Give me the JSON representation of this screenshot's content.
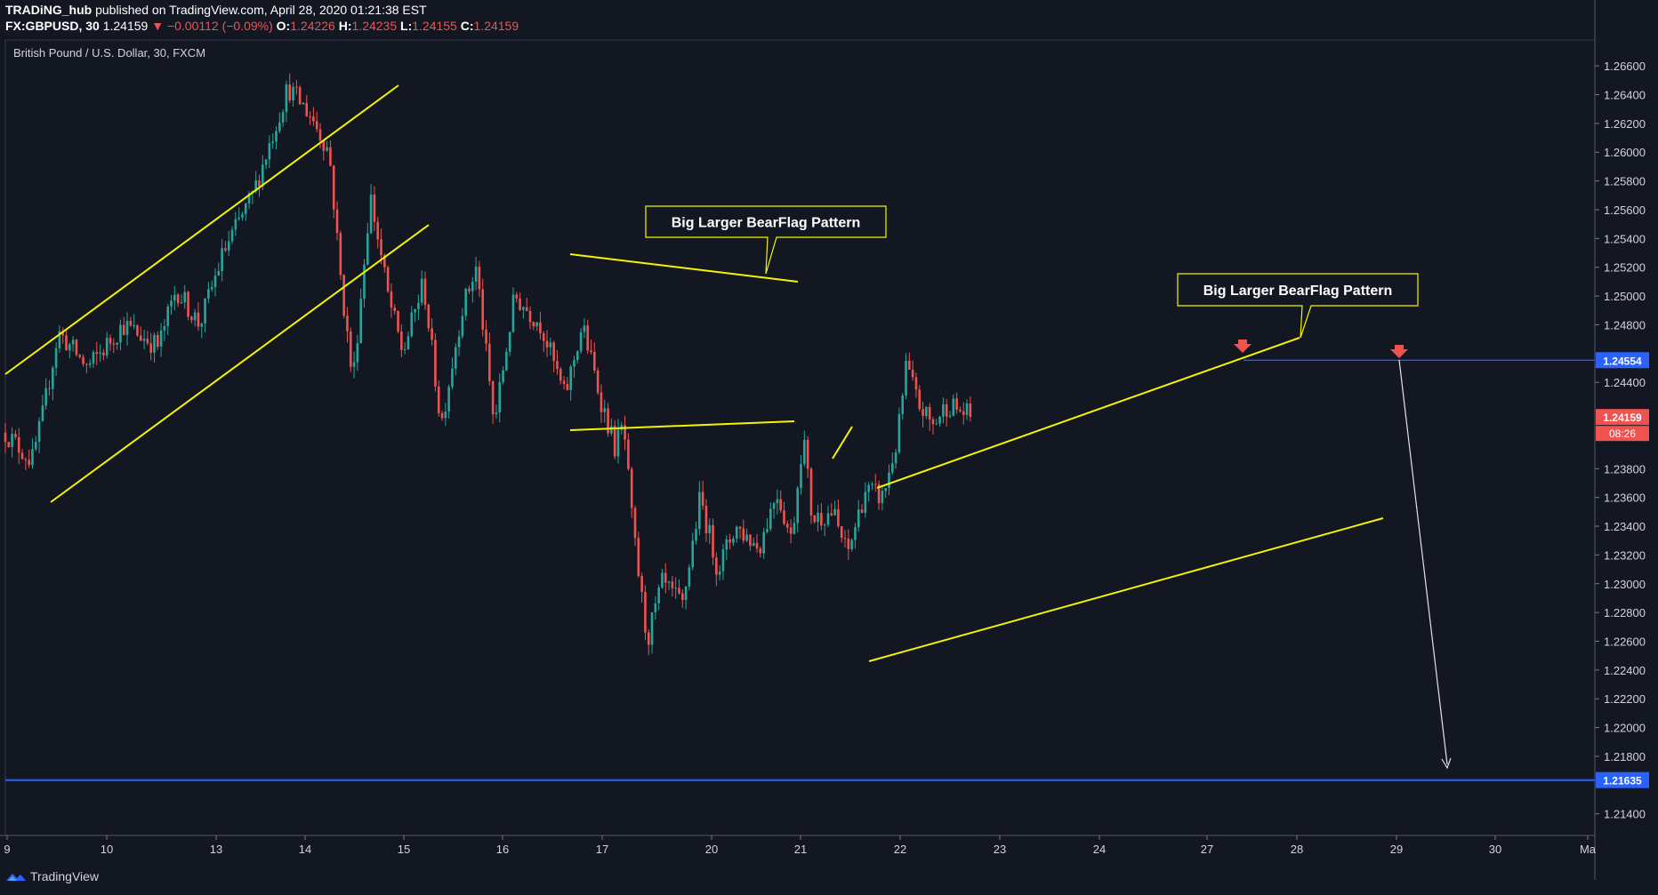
{
  "header": {
    "author": "TRADiNG_hub",
    "published_text": "published on TradingView.com, April 28, 2020 01:21:38 EST",
    "symbol_line": "FX:GBPUSD, 30",
    "last": "1.24159",
    "change": "▼ −0.00112 (−0.09%)",
    "o_label": "O:",
    "o": "1.24226",
    "h_label": "H:",
    "h": "1.24235",
    "l_label": "L:",
    "l": "1.24155",
    "c_label": "C:",
    "c": "1.24159"
  },
  "watermark": "TradingView",
  "colors": {
    "background": "#131722",
    "up": "#26a69a",
    "down": "#ef5350",
    "trendline": "#f5f500",
    "hline": "#2962ff",
    "arrow": "#e2e4e9",
    "marker": "#ef5350"
  },
  "chart_data": {
    "type": "candlestick",
    "title": "British Pound / U.S. Dollar, 30, FXCM",
    "x_ticks": [
      "9",
      "10",
      "13",
      "14",
      "15",
      "16",
      "17",
      "20",
      "21",
      "22",
      "23",
      "24",
      "27",
      "28",
      "29",
      "30",
      "Ma"
    ],
    "y_ticks": [
      "1.26600",
      "1.26400",
      "1.26200",
      "1.26000",
      "1.25800",
      "1.25600",
      "1.25400",
      "1.25200",
      "1.25000",
      "1.24800",
      "1.24400",
      "1.23800",
      "1.23600",
      "1.23400",
      "1.23200",
      "1.23000",
      "1.22800",
      "1.22600",
      "1.22400",
      "1.22200",
      "1.22000",
      "1.21800",
      "1.21400"
    ],
    "ylim": [
      1.2125,
      1.2678
    ],
    "price_labels": [
      {
        "name": "resistance",
        "value": 1.24554,
        "text": "1.24554",
        "color": "#2962ff"
      },
      {
        "name": "current",
        "value": 1.24159,
        "text": "1.24159",
        "color": "#ef5350"
      },
      {
        "name": "target",
        "value": 1.21635,
        "text": "1.21635",
        "color": "#2962ff"
      }
    ],
    "countdown": "08:26",
    "annotations": [
      {
        "text": "Big Larger BearFlag Pattern"
      },
      {
        "text": "Big Larger BearFlag Pattern"
      }
    ],
    "anchors": [
      [
        0,
        1.2405
      ],
      [
        0.9,
        1.2385
      ],
      [
        1.25,
        1.2415
      ],
      [
        1.8,
        1.2475
      ],
      [
        2.8,
        1.245
      ],
      [
        4.0,
        1.248
      ],
      [
        5.2,
        1.2465
      ],
      [
        5.8,
        1.2505
      ],
      [
        6.6,
        1.248
      ],
      [
        7.4,
        1.253
      ],
      [
        8.4,
        1.257
      ],
      [
        9.2,
        1.262
      ],
      [
        9.6,
        1.2645
      ],
      [
        10.4,
        1.2625
      ],
      [
        11.0,
        1.26
      ],
      [
        11.4,
        1.251
      ],
      [
        11.8,
        1.244
      ],
      [
        12.4,
        1.257
      ],
      [
        13.0,
        1.25
      ],
      [
        13.5,
        1.246
      ],
      [
        14.2,
        1.251
      ],
      [
        14.8,
        1.241
      ],
      [
        15.5,
        1.249
      ],
      [
        16.0,
        1.252
      ],
      [
        16.6,
        1.241
      ],
      [
        17.3,
        1.25
      ],
      [
        18.2,
        1.248
      ],
      [
        19.0,
        1.243
      ],
      [
        19.6,
        1.248
      ],
      [
        20.2,
        1.243
      ],
      [
        20.7,
        1.2395
      ],
      [
        21.0,
        1.241
      ],
      [
        21.3,
        1.234
      ],
      [
        21.8,
        1.226
      ],
      [
        22.3,
        1.23
      ],
      [
        23.0,
        1.2285
      ],
      [
        23.6,
        1.236
      ],
      [
        24.2,
        1.231
      ],
      [
        24.8,
        1.234
      ],
      [
        25.6,
        1.2325
      ],
      [
        26.2,
        1.2365
      ],
      [
        26.7,
        1.233
      ],
      [
        27.1,
        1.2405
      ],
      [
        27.4,
        1.2345
      ],
      [
        28.1,
        1.235
      ],
      [
        28.6,
        1.232
      ],
      [
        29.2,
        1.2365
      ],
      [
        29.8,
        1.236
      ],
      [
        30.3,
        1.24
      ],
      [
        30.6,
        1.2452
      ],
      [
        31.0,
        1.2425
      ],
      [
        31.5,
        1.241
      ],
      [
        32.0,
        1.2425
      ],
      [
        32.8,
        1.2416
      ]
    ]
  }
}
